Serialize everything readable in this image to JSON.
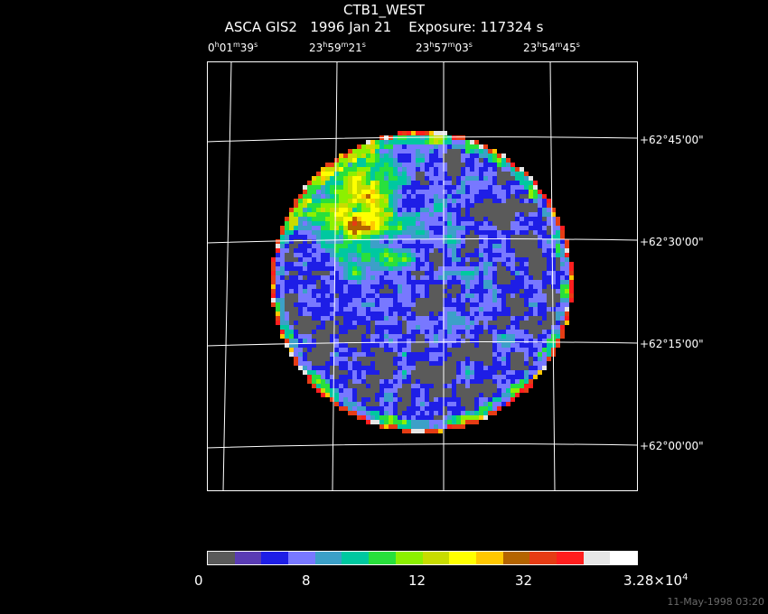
{
  "header": {
    "title": "CTB1_WEST",
    "instrument": "ASCA GIS2",
    "date": "1996 Jan 21",
    "exposure": "Exposure: 117324 s"
  },
  "ra_labels": [
    {
      "h": "0",
      "m": "01",
      "s": "39"
    },
    {
      "h": "23",
      "m": "59",
      "s": "21"
    },
    {
      "h": "23",
      "m": "57",
      "s": "03"
    },
    {
      "h": "23",
      "m": "54",
      "s": "45"
    }
  ],
  "dec_labels": [
    "+62°45'00\"",
    "+62°30'00\"",
    "+62°15'00\"",
    "+62°00'00\""
  ],
  "colorbar": {
    "colors": [
      "#5a5a5a",
      "#5a3cb4",
      "#1e1ee6",
      "#7878ff",
      "#3ca0c8",
      "#00c8a0",
      "#28e03c",
      "#8cf000",
      "#c8dc00",
      "#ffff00",
      "#ffc800",
      "#b46400",
      "#e63c14",
      "#ff1e1e",
      "#e6e6e6",
      "#ffffff"
    ],
    "labels": {
      "l0": "0",
      "l1": "8",
      "l2": "12",
      "l3": "32",
      "l4_base": "3.28×10",
      "l4_exp": "4"
    }
  },
  "timestamp": "11-May-1998 03:20"
}
